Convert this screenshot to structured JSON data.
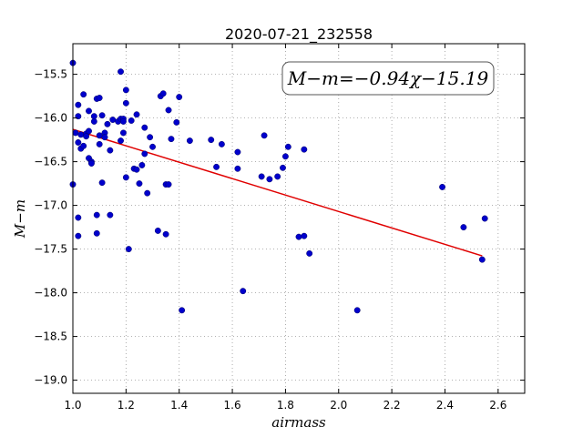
{
  "chart_data": {
    "type": "scatter",
    "title": "2020-07-21_232558",
    "xlabel": "airmass",
    "ylabel": "M−m",
    "xlim": [
      1.0,
      2.7
    ],
    "ylim": [
      -19.15,
      -15.15
    ],
    "xticks": [
      1.0,
      1.2,
      1.4,
      1.6,
      1.8,
      2.0,
      2.2,
      2.4,
      2.6
    ],
    "xtick_labels": [
      "1.0",
      "1.2",
      "1.4",
      "1.6",
      "1.8",
      "2.0",
      "2.2",
      "2.4",
      "2.6"
    ],
    "yticks": [
      -15.5,
      -16.0,
      -16.5,
      -17.0,
      -17.5,
      -18.0,
      -18.5,
      -19.0
    ],
    "ytick_labels": [
      "−15.5",
      "−16.0",
      "−16.5",
      "−17.0",
      "−17.5",
      "−18.0",
      "−18.5",
      "−19.0"
    ],
    "grid": true,
    "annotation": "M−m=−0.94χ−15.19",
    "fit": {
      "slope": -0.94,
      "intercept": -15.19,
      "x_range": [
        1.0,
        2.54
      ]
    },
    "colors": {
      "points": "#0000cc",
      "fit_line": "#e00000",
      "grid": "#999999"
    },
    "points": [
      [
        1.0,
        -15.37
      ],
      [
        1.0,
        -16.76
      ],
      [
        1.01,
        -16.17
      ],
      [
        1.02,
        -15.85
      ],
      [
        1.02,
        -15.98
      ],
      [
        1.02,
        -16.28
      ],
      [
        1.02,
        -17.14
      ],
      [
        1.02,
        -17.35
      ],
      [
        1.03,
        -16.35
      ],
      [
        1.03,
        -16.19
      ],
      [
        1.04,
        -15.73
      ],
      [
        1.04,
        -16.32
      ],
      [
        1.05,
        -16.18
      ],
      [
        1.05,
        -16.21
      ],
      [
        1.06,
        -16.15
      ],
      [
        1.06,
        -16.46
      ],
      [
        1.06,
        -15.92
      ],
      [
        1.07,
        -16.5
      ],
      [
        1.07,
        -16.52
      ],
      [
        1.08,
        -16.04
      ],
      [
        1.08,
        -15.98
      ],
      [
        1.09,
        -15.78
      ],
      [
        1.09,
        -17.32
      ],
      [
        1.09,
        -17.11
      ],
      [
        1.1,
        -15.77
      ],
      [
        1.1,
        -16.3
      ],
      [
        1.1,
        -16.2
      ],
      [
        1.11,
        -15.97
      ],
      [
        1.11,
        -16.74
      ],
      [
        1.12,
        -16.17
      ],
      [
        1.12,
        -16.22
      ],
      [
        1.13,
        -16.07
      ],
      [
        1.14,
        -16.37
      ],
      [
        1.14,
        -17.11
      ],
      [
        1.15,
        -16.02
      ],
      [
        1.17,
        -16.04
      ],
      [
        1.18,
        -16.26
      ],
      [
        1.18,
        -16.01
      ],
      [
        1.18,
        -15.47
      ],
      [
        1.19,
        -16.17
      ],
      [
        1.19,
        -16.01
      ],
      [
        1.19,
        -16.04
      ],
      [
        1.2,
        -15.68
      ],
      [
        1.2,
        -15.83
      ],
      [
        1.2,
        -16.68
      ],
      [
        1.21,
        -17.5
      ],
      [
        1.22,
        -16.03
      ],
      [
        1.23,
        -16.58
      ],
      [
        1.24,
        -15.96
      ],
      [
        1.24,
        -16.59
      ],
      [
        1.25,
        -16.75
      ],
      [
        1.26,
        -16.54
      ],
      [
        1.27,
        -16.11
      ],
      [
        1.27,
        -16.41
      ],
      [
        1.28,
        -16.86
      ],
      [
        1.29,
        -16.22
      ],
      [
        1.3,
        -16.33
      ],
      [
        1.32,
        -17.29
      ],
      [
        1.33,
        -15.75
      ],
      [
        1.34,
        -15.72
      ],
      [
        1.35,
        -16.76
      ],
      [
        1.35,
        -17.33
      ],
      [
        1.36,
        -16.76
      ],
      [
        1.36,
        -15.91
      ],
      [
        1.37,
        -16.24
      ],
      [
        1.39,
        -16.05
      ],
      [
        1.4,
        -15.76
      ],
      [
        1.41,
        -18.2
      ],
      [
        1.44,
        -16.26
      ],
      [
        1.52,
        -16.25
      ],
      [
        1.54,
        -16.56
      ],
      [
        1.56,
        -16.3
      ],
      [
        1.62,
        -16.39
      ],
      [
        1.62,
        -16.58
      ],
      [
        1.64,
        -17.98
      ],
      [
        1.71,
        -16.67
      ],
      [
        1.72,
        -16.2
      ],
      [
        1.74,
        -16.7
      ],
      [
        1.77,
        -16.67
      ],
      [
        1.79,
        -16.57
      ],
      [
        1.8,
        -16.44
      ],
      [
        1.81,
        -16.33
      ],
      [
        1.85,
        -17.36
      ],
      [
        1.87,
        -16.36
      ],
      [
        1.87,
        -17.35
      ],
      [
        1.89,
        -17.55
      ],
      [
        2.07,
        -18.2
      ],
      [
        2.39,
        -16.79
      ],
      [
        2.47,
        -17.25
      ],
      [
        2.54,
        -17.62
      ],
      [
        2.55,
        -17.15
      ]
    ]
  }
}
